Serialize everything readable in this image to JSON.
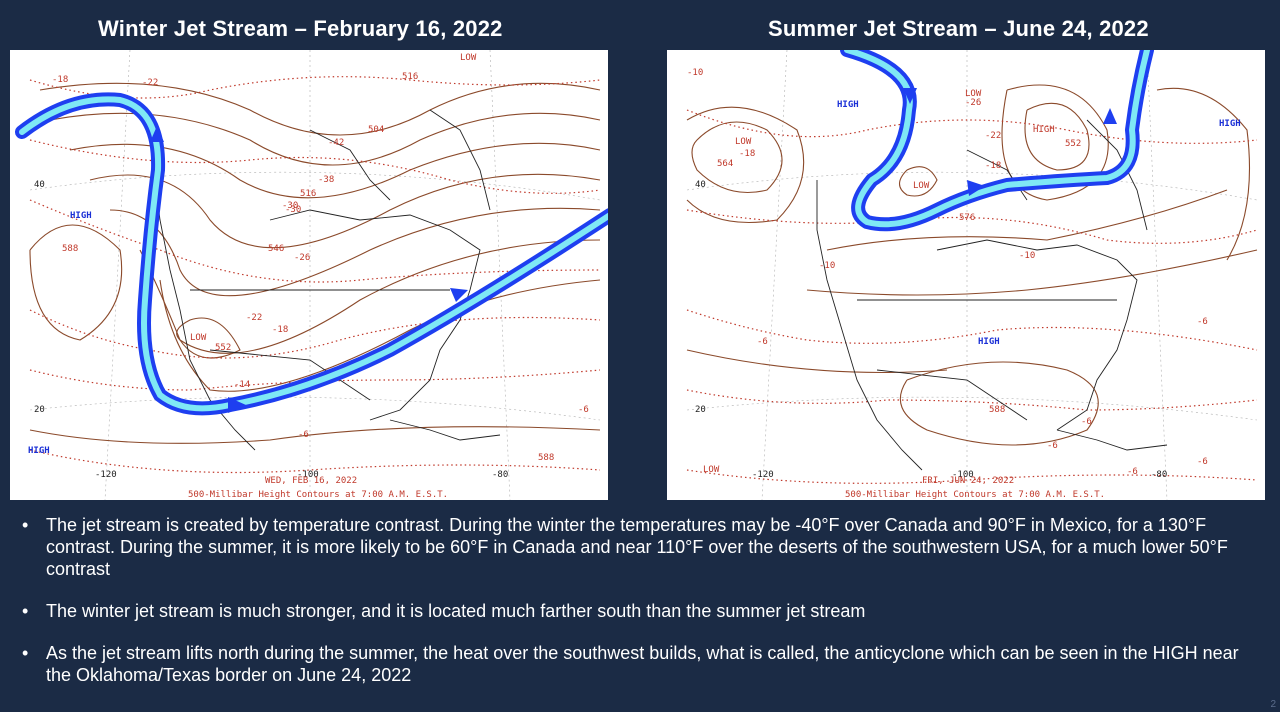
{
  "titles": {
    "left": "Winter Jet Stream – February 16, 2022",
    "right": "Summer Jet Stream – June 24, 2022"
  },
  "colors": {
    "background": "#1b2b45",
    "jet_stream_outer": "#1e3ff0",
    "jet_stream_inner": "#7fe8f5",
    "height_contours": "#8b4a2b",
    "temperature_contours": "#c0392b",
    "high_low_labels": "#1a2fd6"
  },
  "winter_map": {
    "date_label": "WED, FEB 16, 2022",
    "caption": "500-Millibar Height Contours at 7:00 A.M. E.S.T.",
    "high_labels": [
      "HIGH",
      "HIGH"
    ],
    "low_labels": [
      "LOW",
      "LOW"
    ],
    "lat_labels": [
      "40",
      "20"
    ],
    "lon_labels": [
      "-120",
      "-100",
      "-80"
    ],
    "contour_labels": [
      "-18",
      "-22",
      "504",
      "-42",
      "-38",
      "516",
      "-30",
      "546",
      "-26",
      "-22",
      "-18",
      "552",
      "-14",
      "-6",
      "588",
      "588",
      "-6",
      "-30",
      "516"
    ]
  },
  "summer_map": {
    "date_label": "FRI, JUN 24, 2022",
    "caption": "500-Millibar Height Contours at 7:00 A.M. E.S.T.",
    "high_labels": [
      "HIGH",
      "HIGH",
      "HIGH",
      "HIGH"
    ],
    "low_labels": [
      "LOW",
      "LOW",
      "LOW",
      "LOW"
    ],
    "lat_labels": [
      "40",
      "20"
    ],
    "lon_labels": [
      "-120",
      "-100",
      "-80"
    ],
    "contour_labels": [
      "-10",
      "-18",
      "564",
      "-26",
      "-22",
      "-18",
      "552",
      "576",
      "-10",
      "-10",
      "-6",
      "-6",
      "588",
      "-6",
      "-6",
      "-6",
      "-6"
    ]
  },
  "bullets": [
    "The jet stream is created by temperature contrast. During the winter the temperatures may be -40°F over Canada and 90°F in Mexico, for a  130°F contrast.  During the summer, it is more likely to be 60°F in Canada and near 110°F over the deserts of the southwestern USA, for a much lower 50°F contrast",
    "The winter jet stream is much stronger, and it is located much farther south than the summer jet stream",
    "As the jet stream lifts north during the summer, the heat over the southwest builds, what is called, the anticyclone which can be seen in the HIGH near the Oklahoma/Texas border on June 24, 2022"
  ],
  "bullet_symbol": "•",
  "page_number": "2"
}
